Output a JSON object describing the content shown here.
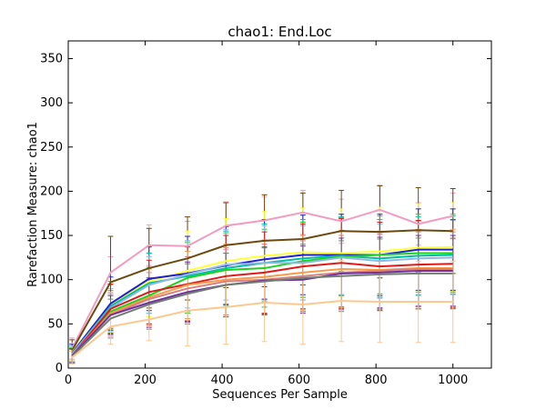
{
  "chart_data": {
    "type": "line",
    "title": "chao1: End.Loc",
    "xlabel": "Sequences Per Sample",
    "ylabel": "Rarefaction Measure: chao1",
    "xlim": [
      0,
      1100
    ],
    "ylim": [
      0,
      370
    ],
    "xticks": [
      0,
      200,
      400,
      600,
      800,
      1000
    ],
    "yticks": [
      0,
      50,
      100,
      150,
      200,
      250,
      300,
      350
    ],
    "grid": false,
    "x": [
      10,
      110,
      210,
      310,
      410,
      510,
      610,
      710,
      810,
      910,
      1000
    ],
    "series": [
      {
        "color": "#f39cc0",
        "values": [
          22,
          108,
          139,
          138,
          161,
          167,
          176,
          166,
          179,
          163,
          172
        ],
        "err": [
          12,
          18,
          23,
          28,
          27,
          27,
          25,
          25,
          28,
          24,
          26
        ]
      },
      {
        "color": "#6b4a10",
        "values": [
          20,
          97,
          113,
          124,
          139,
          144,
          146,
          155,
          154,
          156,
          155
        ],
        "err": [
          12,
          52,
          45,
          47,
          48,
          52,
          52,
          46,
          52,
          48,
          48
        ]
      },
      {
        "color": "#ffff33",
        "values": [
          18,
          72,
          98,
          110,
          121,
          127,
          131,
          130,
          132,
          136,
          137
        ],
        "err": [
          10,
          28,
          40,
          45,
          48,
          50,
          50,
          50,
          50,
          50,
          50
        ]
      },
      {
        "color": "#1f1fd6",
        "values": [
          17,
          73,
          101,
          107,
          116,
          123,
          128,
          128,
          128,
          134,
          134
        ],
        "err": [
          10,
          30,
          36,
          42,
          44,
          45,
          45,
          46,
          46,
          46,
          46
        ]
      },
      {
        "color": "#00bfa0",
        "values": [
          16,
          70,
          96,
          104,
          113,
          119,
          124,
          127,
          124,
          127,
          128
        ],
        "err": [
          9,
          28,
          34,
          40,
          42,
          44,
          44,
          44,
          44,
          44,
          44
        ]
      },
      {
        "color": "#1fd11f",
        "values": [
          15,
          64,
          82,
          102,
          111,
          113,
          121,
          126,
          128,
          130,
          130
        ],
        "err": [
          8,
          24,
          32,
          40,
          42,
          44,
          44,
          44,
          44,
          44,
          44
        ]
      },
      {
        "color": "#8fb8e8",
        "values": [
          16,
          68,
          94,
          106,
          117,
          119,
          119,
          125,
          121,
          124,
          125
        ],
        "err": [
          9,
          26,
          32,
          38,
          40,
          42,
          42,
          42,
          42,
          42,
          42
        ]
      },
      {
        "color": "#dd1a1a",
        "values": [
          14,
          67,
          86,
          95,
          104,
          108,
          115,
          119,
          115,
          117,
          118
        ],
        "err": [
          8,
          28,
          36,
          42,
          46,
          46,
          48,
          50,
          50,
          50,
          50
        ]
      },
      {
        "color": "#f79a4a",
        "values": [
          14,
          62,
          80,
          94,
          100,
          103,
          108,
          112,
          111,
          113,
          113
        ],
        "err": [
          8,
          24,
          32,
          38,
          40,
          42,
          42,
          44,
          44,
          44,
          44
        ]
      },
      {
        "color": "#d88080",
        "values": [
          14,
          60,
          78,
          90,
          98,
          100,
          104,
          108,
          110,
          112,
          112
        ],
        "err": [
          8,
          24,
          30,
          36,
          38,
          40,
          40,
          42,
          42,
          42,
          42
        ]
      },
      {
        "color": "#7030a0",
        "values": [
          14,
          60,
          74,
          86,
          94,
          99,
          100,
          107,
          108,
          110,
          110
        ],
        "err": [
          8,
          22,
          28,
          34,
          36,
          38,
          38,
          40,
          40,
          40,
          40
        ]
      },
      {
        "color": "#708070",
        "values": [
          13,
          56,
          72,
          84,
          94,
          98,
          102,
          104,
          106,
          107,
          107
        ],
        "err": [
          8,
          22,
          28,
          34,
          36,
          38,
          38,
          40,
          40,
          40,
          40
        ]
      },
      {
        "color": "#fcc890",
        "values": [
          12,
          47,
          55,
          65,
          69,
          74,
          72,
          76,
          75,
          75,
          75
        ],
        "err": [
          7,
          20,
          24,
          40,
          42,
          44,
          45,
          46,
          46,
          46,
          46
        ]
      }
    ]
  }
}
